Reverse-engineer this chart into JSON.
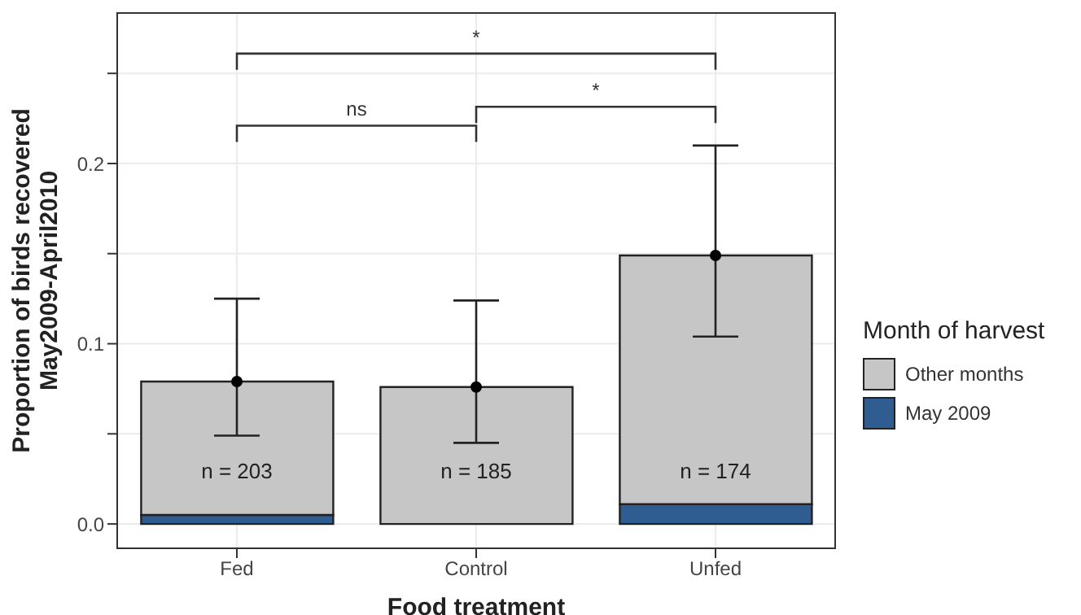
{
  "chart_data": {
    "type": "bar",
    "stacked": true,
    "xlabel": "Food treatment",
    "ylabel": "Proportion of birds recovered\nMay2009-April2010",
    "legend_title": "Month of harvest",
    "legend": "right",
    "grid": true,
    "categories": [
      "Fed",
      "Control",
      "Unfed"
    ],
    "series": [
      {
        "name": "May 2009",
        "color": "#2f5d92",
        "values": [
          0.005,
          0,
          0.011
        ]
      },
      {
        "name": "Other months",
        "color": "#c6c6c6",
        "values": [
          0.074,
          0.076,
          0.138
        ]
      },
      {
        "type": "scatter",
        "color": "#000000",
        "x": [
          "Fed",
          "Control",
          "Unfed"
        ],
        "values": [
          0.079,
          0.076,
          0.149
        ],
        "errors": [
          [
            0.049,
            0.125
          ],
          [
            0.045,
            0.124
          ],
          [
            0.104,
            0.21
          ]
        ]
      }
    ],
    "ylim": [
      -0.0135,
      0.2835
    ],
    "yticks": [
      {
        "value": 0,
        "label": "0.0"
      },
      {
        "value": 0.05,
        "label": null
      },
      0.1,
      {
        "value": 0.15,
        "label": null
      },
      0.2,
      {
        "value": 0.25,
        "label": null
      }
    ],
    "annotations": [
      "n = 203",
      "n = 185",
      "n = 174",
      "ns",
      "*",
      "*"
    ]
  }
}
